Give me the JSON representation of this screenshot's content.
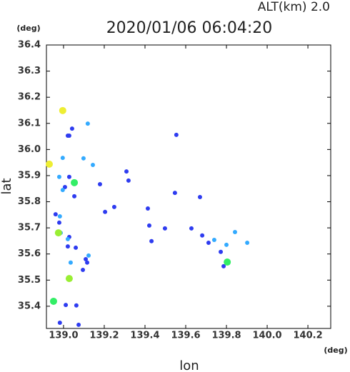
{
  "chart_data": {
    "type": "scatter",
    "title": "2020/01/06 06:04:20",
    "altitude_label": "ALT(km)  2.0",
    "x_label": "lon",
    "y_label": "lat",
    "x_unit": "(deg)",
    "y_unit": "(deg)",
    "xlim": [
      138.916,
      140.312
    ],
    "ylim": [
      35.315,
      36.4
    ],
    "xticks": [
      {
        "value": 139,
        "label": "139.0"
      },
      139.2,
      139.4,
      139.6,
      139.8,
      {
        "value": 140,
        "label": "140.0"
      },
      140.2
    ],
    "yticks": [
      35.4,
      35.5,
      35.6,
      35.7,
      35.8,
      35.9,
      {
        "value": 36,
        "label": "36.0"
      },
      36.1,
      36.2,
      36.3,
      36.4
    ],
    "series": [
      {
        "color": "#2e3cf0",
        "x": [
          139.028,
          139.042,
          139.028,
          139.007,
          138.961,
          138.979,
          139.028,
          139.021,
          139.06,
          139.109,
          139.116,
          139.095,
          139.011,
          139.063,
          138.982,
          139.074,
          139.053,
          139.179,
          139.309,
          139.319,
          139.421,
          139.432,
          139.498,
          139.628,
          139.681,
          139.712,
          139.772,
          139.786,
          139.554,
          139.547,
          139.249,
          139.67,
          139.204,
          139.414,
          139.021
        ],
        "y": [
          36.053,
          36.08,
          35.895,
          35.856,
          35.752,
          35.72,
          35.665,
          35.629,
          35.624,
          35.58,
          35.567,
          35.539,
          35.405,
          35.403,
          35.337,
          35.329,
          35.821,
          35.867,
          35.916,
          35.881,
          35.709,
          35.649,
          35.698,
          35.698,
          35.671,
          35.643,
          35.608,
          35.553,
          36.056,
          35.834,
          35.78,
          35.818,
          35.761,
          35.774,
          36.053
        ]
      },
      {
        "color": "#33aaff",
        "x": [
          138.996,
          139.098,
          139.144,
          138.996,
          138.982,
          139.021,
          139.035,
          139.123,
          139.842,
          139.902,
          139.74,
          139.8,
          138.979,
          139.119,
          138.986
        ],
        "y": [
          35.968,
          35.966,
          35.941,
          35.845,
          35.744,
          35.657,
          35.567,
          35.594,
          35.684,
          35.643,
          35.654,
          35.635,
          35.895,
          36.099,
          35.681
        ]
      },
      {
        "color": "#33ee66",
        "x": [
          138.951,
          139.804,
          139.053
        ],
        "y": [
          35.419,
          35.569,
          35.873
        ]
      },
      {
        "color": "#99ee33",
        "x": [
          139.028,
          138.975
        ],
        "y": [
          35.506,
          35.681
        ]
      },
      {
        "color": "#eeee33",
        "x": [
          138.996,
          138.93
        ],
        "y": [
          36.149,
          35.944
        ]
      }
    ]
  }
}
